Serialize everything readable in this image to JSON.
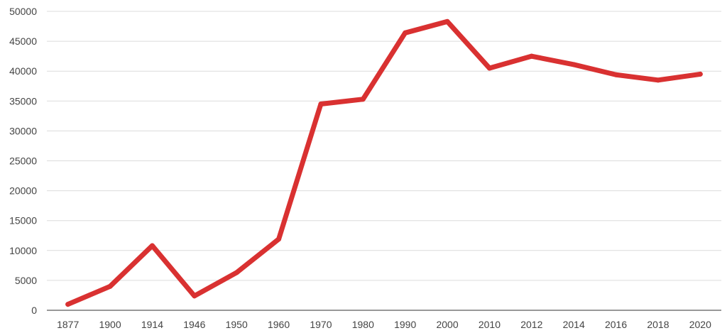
{
  "chart_data": {
    "type": "line",
    "title": "",
    "xlabel": "",
    "ylabel": "",
    "categories": [
      "1877",
      "1900",
      "1914",
      "1946",
      "1950",
      "1960",
      "1970",
      "1980",
      "1990",
      "2000",
      "2010",
      "2012",
      "2014",
      "2016",
      "2018",
      "2020"
    ],
    "series": [
      {
        "values": [
          1000,
          4000,
          10800,
          2400,
          6300,
          11900,
          34500,
          35300,
          46400,
          48300,
          40500,
          42500,
          41100,
          39400,
          38500,
          39500
        ],
        "color": "#d93131"
      }
    ],
    "ylim": [
      0,
      50000
    ],
    "yticks": [
      0,
      5000,
      10000,
      15000,
      20000,
      25000,
      30000,
      35000,
      40000,
      45000,
      50000
    ],
    "grid": true,
    "legend": "none"
  }
}
